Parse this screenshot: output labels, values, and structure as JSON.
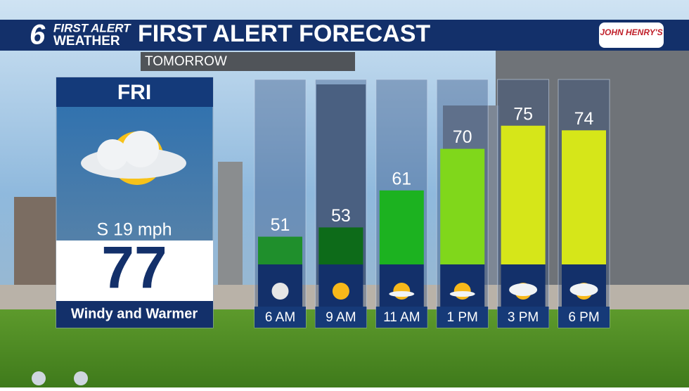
{
  "branding": {
    "channel": "6",
    "line1": "FIRST ALERT",
    "line2": "WEATHER",
    "sponsor": "JOHN HENRY'S"
  },
  "day_panel": {
    "day": "FRI",
    "wind": "S 19 mph",
    "high": "77",
    "summary": "Windy and Warmer"
  },
  "chart_data": {
    "type": "bar",
    "title": "FIRST ALERT FORECAST",
    "subtitle": "TOMORROW",
    "categories": [
      "6 AM",
      "9 AM",
      "11 AM",
      "1 PM",
      "3 PM",
      "6 PM"
    ],
    "values": [
      51,
      53,
      61,
      70,
      75,
      74
    ],
    "colors": [
      "#1f8f2c",
      "#0d6b19",
      "#1cb220",
      "#80d71b",
      "#d6e619",
      "#d6e619"
    ],
    "ylim": [
      45,
      85
    ]
  }
}
